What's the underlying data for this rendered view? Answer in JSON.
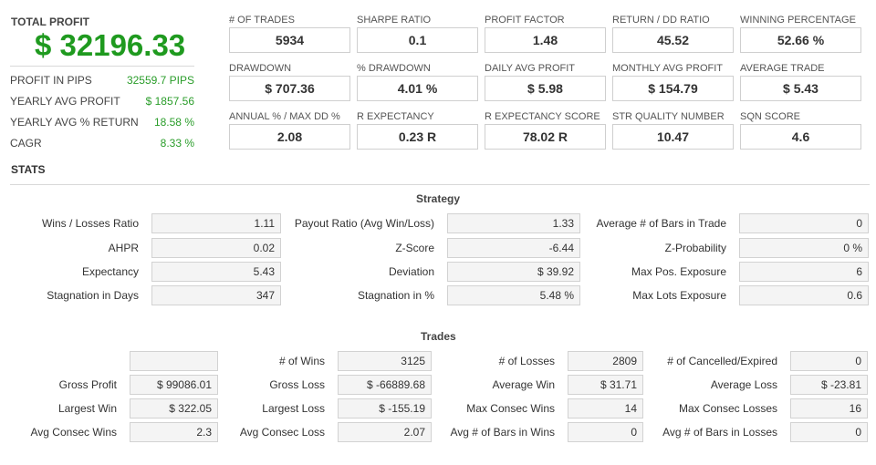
{
  "summary": {
    "total_profit_label": "TOTAL PROFIT",
    "total_profit_value": "$ 32196.33",
    "rows": [
      {
        "label": "PROFIT IN PIPS",
        "value": "32559.7 PIPS"
      },
      {
        "label": "YEARLY AVG PROFIT",
        "value": "$ 1857.56"
      },
      {
        "label": "YEARLY AVG % RETURN",
        "value": "18.58 %"
      },
      {
        "label": "CAGR",
        "value": "8.33 %"
      }
    ]
  },
  "metrics": [
    {
      "label": "# OF TRADES",
      "value": "5934"
    },
    {
      "label": "SHARPE RATIO",
      "value": "0.1"
    },
    {
      "label": "PROFIT FACTOR",
      "value": "1.48"
    },
    {
      "label": "RETURN / DD RATIO",
      "value": "45.52"
    },
    {
      "label": "WINNING PERCENTAGE",
      "value": "52.66 %"
    },
    {
      "label": "DRAWDOWN",
      "value": "$ 707.36"
    },
    {
      "label": "% DRAWDOWN",
      "value": "4.01 %"
    },
    {
      "label": "DAILY AVG PROFIT",
      "value": "$ 5.98"
    },
    {
      "label": "MONTHLY AVG PROFIT",
      "value": "$ 154.79"
    },
    {
      "label": "AVERAGE TRADE",
      "value": "$ 5.43"
    },
    {
      "label": "ANNUAL % / MAX DD %",
      "value": "2.08"
    },
    {
      "label": "R EXPECTANCY",
      "value": "0.23 R"
    },
    {
      "label": "R EXPECTANCY SCORE",
      "value": "78.02 R"
    },
    {
      "label": "STR QUALITY NUMBER",
      "value": "10.47"
    },
    {
      "label": "SQN SCORE",
      "value": "4.6"
    }
  ],
  "stats_heading": "STATS",
  "strategy": {
    "title": "Strategy",
    "rows": [
      [
        {
          "label": "Wins / Losses Ratio",
          "value": "1.11"
        },
        {
          "label": "Payout Ratio (Avg Win/Loss)",
          "value": "1.33"
        },
        {
          "label": "Average # of Bars in Trade",
          "value": "0"
        }
      ],
      [
        {
          "label": "AHPR",
          "value": "0.02"
        },
        {
          "label": "Z-Score",
          "value": "-6.44"
        },
        {
          "label": "Z-Probability",
          "value": "0 %"
        }
      ],
      [
        {
          "label": "Expectancy",
          "value": "5.43"
        },
        {
          "label": "Deviation",
          "value": "$ 39.92"
        },
        {
          "label": "Max Pos. Exposure",
          "value": "6"
        }
      ],
      [
        {
          "label": "Stagnation in Days",
          "value": "347"
        },
        {
          "label": "Stagnation in %",
          "value": "5.48 %"
        },
        {
          "label": "Max Lots Exposure",
          "value": "0.6"
        }
      ]
    ]
  },
  "trades": {
    "title": "Trades",
    "rows": [
      [
        {
          "label": "",
          "value": ""
        },
        {
          "label": "# of Wins",
          "value": "3125"
        },
        {
          "label": "# of Losses",
          "value": "2809"
        },
        {
          "label": "# of Cancelled/Expired",
          "value": "0"
        }
      ],
      [
        {
          "label": "Gross Profit",
          "value": "$ 99086.01"
        },
        {
          "label": "Gross Loss",
          "value": "$ -66889.68"
        },
        {
          "label": "Average Win",
          "value": "$ 31.71"
        },
        {
          "label": "Average Loss",
          "value": "$ -23.81"
        }
      ],
      [
        {
          "label": "Largest Win",
          "value": "$ 322.05"
        },
        {
          "label": "Largest Loss",
          "value": "$ -155.19"
        },
        {
          "label": "Max Consec Wins",
          "value": "14"
        },
        {
          "label": "Max Consec Losses",
          "value": "16"
        }
      ],
      [
        {
          "label": "Avg Consec Wins",
          "value": "2.3"
        },
        {
          "label": "Avg Consec Loss",
          "value": "2.07"
        },
        {
          "label": "Avg # of Bars in Wins",
          "value": "0"
        },
        {
          "label": "Avg # of Bars in Losses",
          "value": "0"
        }
      ]
    ]
  },
  "colors": {
    "profit_green": "#1f9a1f",
    "value_green": "#2a9d2a"
  }
}
